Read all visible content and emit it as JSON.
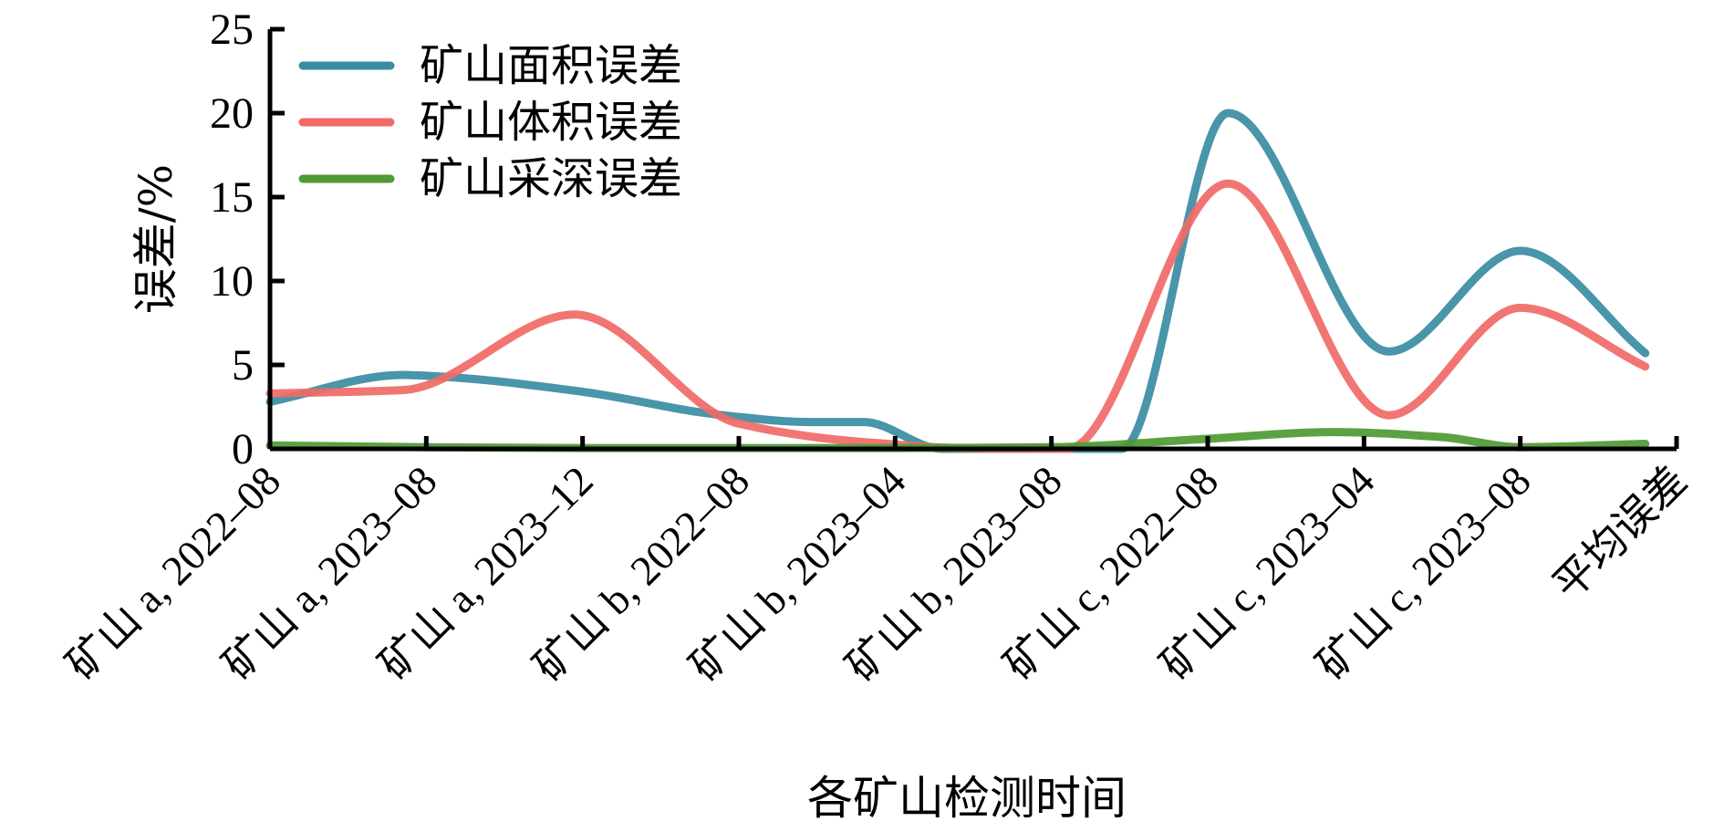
{
  "chart_data": {
    "type": "line",
    "title": "",
    "xlabel": "各矿山检测时间",
    "ylabel": "误差/%",
    "ylim": [
      0,
      25
    ],
    "yticks": [
      0,
      5,
      10,
      15,
      20,
      25
    ],
    "grid": false,
    "legend_position": "top-left",
    "smooth": true,
    "categories": [
      "矿山 a, 2022–08",
      "矿山 a, 2023–08",
      "矿山 a, 2023–12",
      "矿山 b, 2022–08",
      "矿山 b, 2023–04",
      "矿山 b, 2023–08",
      "矿山 c, 2022–08",
      "矿山 c, 2023–04",
      "矿山 c, 2023–08",
      "平均误差"
    ],
    "series": [
      {
        "name": "矿山面积误差",
        "color": "#3A8CA3",
        "x": [
          0,
          0.85,
          1.1,
          2.0,
          2.9,
          3.45,
          3.8,
          4.3,
          5.45,
          6.13,
          7.16,
          8.0,
          8.8
        ],
        "values": [
          2.8,
          4.4,
          4.3,
          3.4,
          2.0,
          1.6,
          1.6,
          0.0,
          0.0,
          20.0,
          5.8,
          11.8,
          5.7
        ]
      },
      {
        "name": "矿山体积误差",
        "color": "#F06A67",
        "x": [
          0,
          0.85,
          1.95,
          3.0,
          3.8,
          4.6,
          5.1,
          6.13,
          7.16,
          8.0,
          8.8
        ],
        "values": [
          3.3,
          3.5,
          8.0,
          1.5,
          0.4,
          0.0,
          0.0,
          15.8,
          2.0,
          8.4,
          4.9
        ]
      },
      {
        "name": "矿山采深误差",
        "color": "#4E9A33",
        "x": [
          0,
          1.0,
          2.0,
          3.0,
          4.0,
          5.0,
          6.0,
          6.8,
          7.5,
          8.0,
          8.8
        ],
        "values": [
          0.2,
          0.1,
          0.05,
          0.05,
          0.05,
          0.1,
          0.6,
          1.0,
          0.7,
          0.1,
          0.3
        ]
      }
    ]
  }
}
